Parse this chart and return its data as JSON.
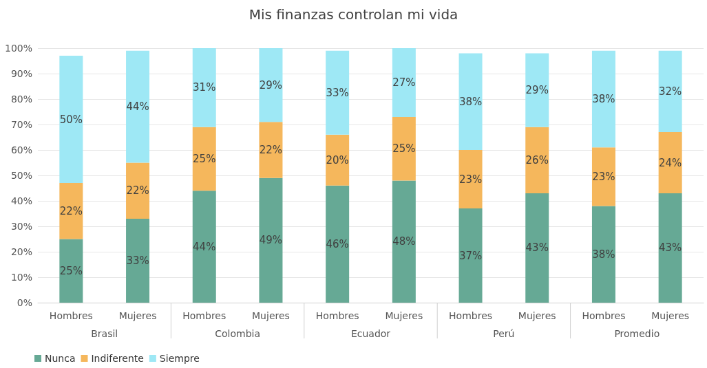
{
  "chart_data": {
    "type": "bar",
    "title": "Mis finanzas controlan mi vida",
    "stacked": true,
    "grid": "y",
    "legend": "bottom left",
    "categories": [
      "Hombres",
      "Mujeres",
      "Hombres",
      "Mujeres",
      "Hombres",
      "Mujeres",
      "Hombres",
      "Mujeres",
      "Hombres",
      "Mujeres"
    ],
    "annotations": [
      "Brasil",
      "Colombia",
      "Ecuador",
      "Perú",
      "Promedio"
    ],
    "ylim": [
      0,
      100
    ],
    "yticks": [
      {
        "value": 0,
        "label": "0%"
      },
      {
        "value": 10,
        "label": "10%"
      },
      {
        "value": 20,
        "label": "20%"
      },
      {
        "value": 30,
        "label": "30%"
      },
      {
        "value": 40,
        "label": "40%"
      },
      {
        "value": 50,
        "label": "50%"
      },
      {
        "value": 60,
        "label": "60%"
      },
      {
        "value": 70,
        "label": "70%"
      },
      {
        "value": 80,
        "label": "80%"
      },
      {
        "value": 90,
        "label": "90%"
      },
      {
        "value": 100,
        "label": "100%"
      }
    ],
    "series": [
      {
        "name": "Nunca",
        "color": "#66a995",
        "values": [
          25,
          33,
          44,
          49,
          46,
          48,
          37,
          43,
          38,
          43
        ],
        "value_labels": [
          "25%",
          "33%",
          "44%",
          "49%",
          "46%",
          "48%",
          "37%",
          "43%",
          "38%",
          "43%"
        ]
      },
      {
        "name": "Indiferente",
        "color": "#f5b75c",
        "values": [
          22,
          22,
          25,
          22,
          20,
          25,
          23,
          26,
          23,
          24
        ],
        "value_labels": [
          "22%",
          "22%",
          "25%",
          "22%",
          "20%",
          "25%",
          "23%",
          "26%",
          "23%",
          "24%"
        ]
      },
      {
        "name": "Siempre",
        "color": "#9ee8f5",
        "values": [
          50,
          44,
          31,
          29,
          33,
          27,
          38,
          29,
          38,
          32
        ],
        "value_labels": [
          "50%",
          "44%",
          "31%",
          "29%",
          "33%",
          "27%",
          "38%",
          "29%",
          "38%",
          "32%"
        ]
      }
    ]
  }
}
